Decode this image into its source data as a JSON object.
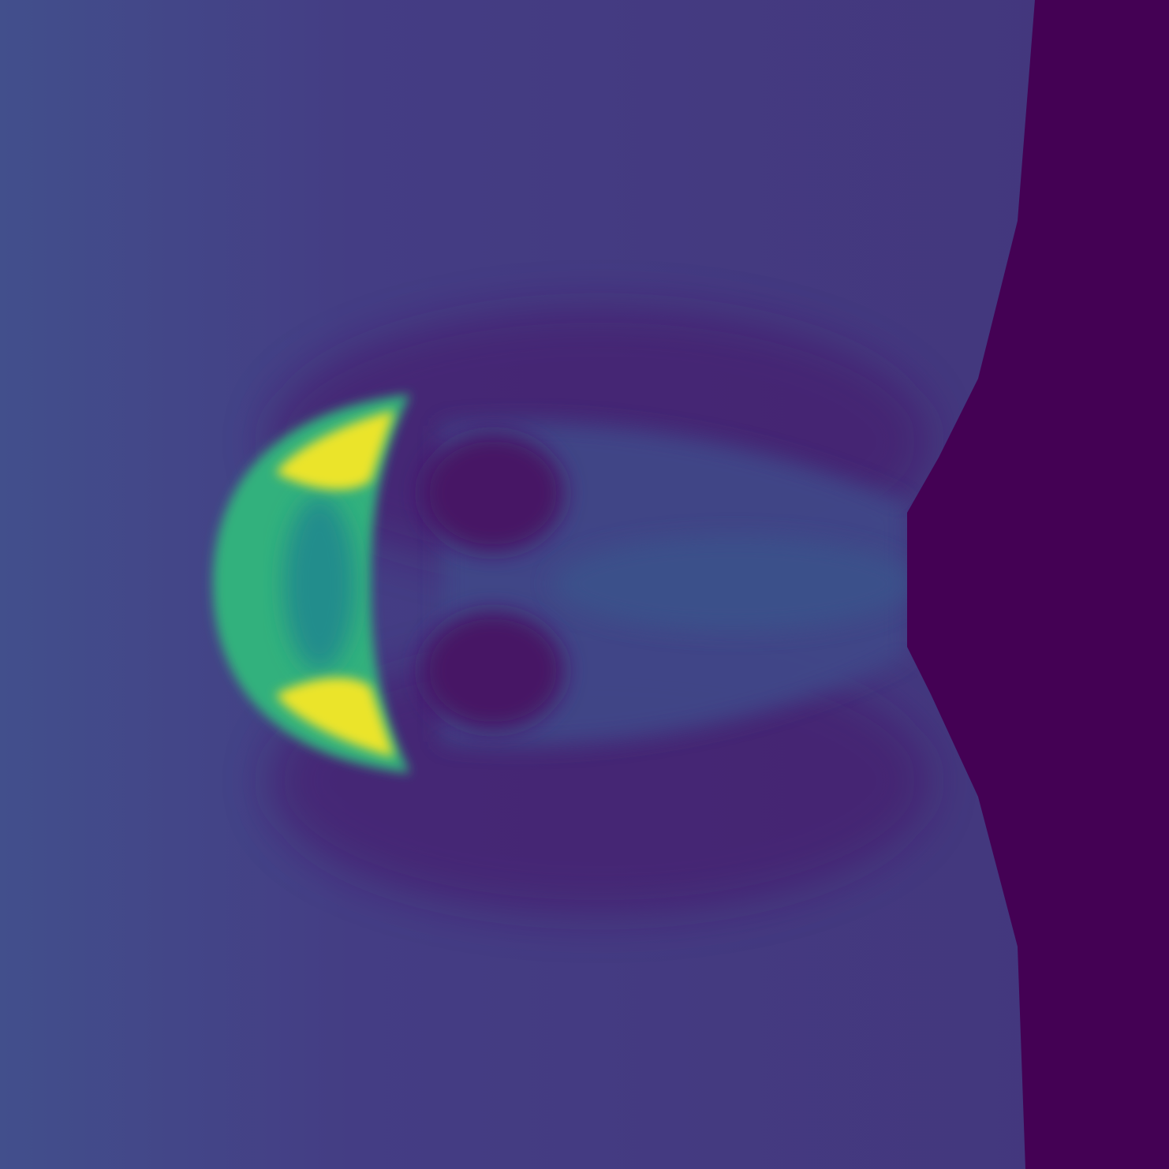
{
  "chart_data": {
    "type": "heatmap",
    "colormap": "viridis",
    "title": "",
    "xlabel": "",
    "ylabel": "",
    "axes_visible": false,
    "colorbar_visible": false,
    "value_range": [
      0.0,
      1.0
    ],
    "background_value": 0.12,
    "regions": [
      {
        "name": "crescent-front",
        "description_value": "peak field",
        "value": 0.98
      },
      {
        "name": "crescent-body",
        "value": 0.72
      },
      {
        "name": "crescent-core",
        "value": 0.55
      },
      {
        "name": "wake-low-upper",
        "value": 0.06
      },
      {
        "name": "wake-low-lower",
        "value": 0.06
      },
      {
        "name": "trailing-plume",
        "value": 0.24
      },
      {
        "name": "right-boundary-region",
        "value": 0.0
      }
    ]
  },
  "colors": {
    "background": "#433a7f",
    "boundary": "#3f0f57",
    "low": "#46286f",
    "plume": "#3f5a8c",
    "mid": "#3fae87",
    "high": "#8fd368",
    "peak": "#f2e42a"
  }
}
